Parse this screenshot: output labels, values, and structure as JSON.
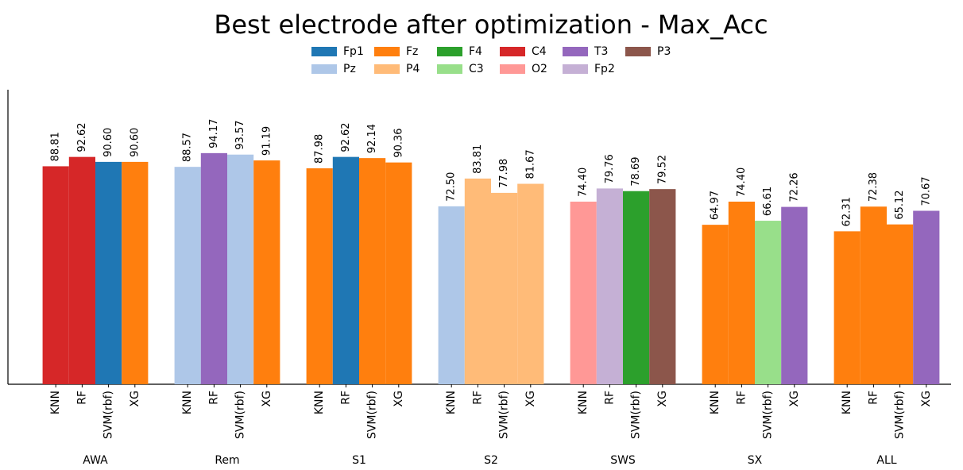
{
  "chart_data": {
    "type": "bar",
    "title": "Best electrode after optimization - Max_Acc",
    "ylim": [
      0,
      120
    ],
    "legend": [
      {
        "name": "Fp1",
        "color": "#1f77b4"
      },
      {
        "name": "Pz",
        "color": "#aec7e8"
      },
      {
        "name": "Fz",
        "color": "#ff7f0e"
      },
      {
        "name": "P4",
        "color": "#ffbb78"
      },
      {
        "name": "F4",
        "color": "#2ca02c"
      },
      {
        "name": "C3",
        "color": "#98df8a"
      },
      {
        "name": "C4",
        "color": "#d62728"
      },
      {
        "name": "O2",
        "color": "#ff9896"
      },
      {
        "name": "T3",
        "color": "#9467bd"
      },
      {
        "name": "Fp2",
        "color": "#c5b0d5"
      },
      {
        "name": "P3",
        "color": "#8c564b"
      }
    ],
    "groups": [
      {
        "name": "AWA",
        "models": [
          "KNN",
          "RF",
          "SVM(rbf)",
          "XG"
        ],
        "values": [
          88.81,
          92.62,
          90.6,
          90.6
        ],
        "value_labels": [
          "88.81",
          "92.62",
          "90.60",
          "90.60"
        ],
        "electrodes": [
          "C4",
          "C4",
          "Fp1",
          "Fz"
        ]
      },
      {
        "name": "Rem",
        "models": [
          "KNN",
          "RF",
          "SVM(rbf)",
          "XG"
        ],
        "values": [
          88.57,
          94.17,
          93.57,
          91.19
        ],
        "value_labels": [
          "88.57",
          "94.17",
          "93.57",
          "91.19"
        ],
        "electrodes": [
          "Pz",
          "T3",
          "Pz",
          "Fz"
        ]
      },
      {
        "name": "S1",
        "models": [
          "KNN",
          "RF",
          "SVM(rbf)",
          "XG"
        ],
        "values": [
          87.98,
          92.62,
          92.14,
          90.36
        ],
        "value_labels": [
          "87.98",
          "92.62",
          "92.14",
          "90.36"
        ],
        "electrodes": [
          "Fz",
          "Fp1",
          "Fz",
          "Fz"
        ]
      },
      {
        "name": "S2",
        "models": [
          "KNN",
          "RF",
          "SVM(rbf)",
          "XG"
        ],
        "values": [
          72.5,
          83.81,
          77.98,
          81.67
        ],
        "value_labels": [
          "72.50",
          "83.81",
          "77.98",
          "81.67"
        ],
        "electrodes": [
          "Pz",
          "P4",
          "P4",
          "P4"
        ]
      },
      {
        "name": "SWS",
        "models": [
          "KNN",
          "RF",
          "SVM(rbf)",
          "XG"
        ],
        "values": [
          74.4,
          79.76,
          78.69,
          79.52
        ],
        "value_labels": [
          "74.40",
          "79.76",
          "78.69",
          "79.52"
        ],
        "electrodes": [
          "O2",
          "Fp2",
          "F4",
          "P3"
        ]
      },
      {
        "name": "SX",
        "models": [
          "KNN",
          "RF",
          "SVM(rbf)",
          "XG"
        ],
        "values": [
          64.97,
          74.4,
          66.61,
          72.26
        ],
        "value_labels": [
          "64.97",
          "74.40",
          "66.61",
          "72.26"
        ],
        "electrodes": [
          "Fz",
          "Fz",
          "C3",
          "T3"
        ]
      },
      {
        "name": "ALL",
        "models": [
          "KNN",
          "RF",
          "SVM(rbf)",
          "XG"
        ],
        "values": [
          62.31,
          72.38,
          65.12,
          70.67
        ],
        "value_labels": [
          "62.31",
          "72.38",
          "65.12",
          "70.67"
        ],
        "electrodes": [
          "Fz",
          "Fz",
          "Fz",
          "T3"
        ]
      }
    ]
  }
}
